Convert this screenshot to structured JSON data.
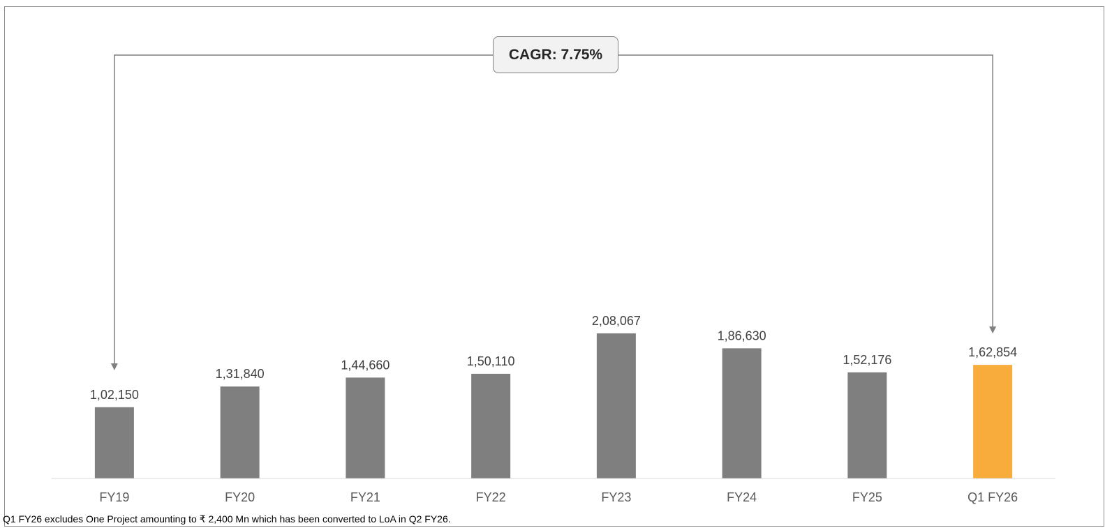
{
  "chart_data": {
    "type": "bar",
    "categories": [
      "FY19",
      "FY20",
      "FY21",
      "FY22",
      "FY23",
      "FY24",
      "FY25",
      "Q1 FY26"
    ],
    "values": [
      102150,
      131840,
      144660,
      150110,
      208067,
      186630,
      152176,
      162854
    ],
    "value_labels": [
      "1,02,150",
      "1,31,840",
      "1,44,660",
      "1,50,110",
      "2,08,067",
      "1,86,630",
      "1,52,176",
      "1,62,854"
    ],
    "colors": [
      "#7f7f7f",
      "#7f7f7f",
      "#7f7f7f",
      "#7f7f7f",
      "#7f7f7f",
      "#7f7f7f",
      "#7f7f7f",
      "#f8ac3c"
    ],
    "title": "",
    "xlabel": "",
    "ylabel": "",
    "ylim": [
      0,
      300000
    ],
    "grid": false,
    "legend": "none",
    "annotation": {
      "text": "CAGR: 7.75%",
      "from": "FY19",
      "to": "Q1 FY26",
      "type": "bracket-arrow"
    }
  },
  "footnote": "Q1 FY26 excludes One Project amounting to ₹ 2,400 Mn which has been converted to LoA in Q2 FY26."
}
